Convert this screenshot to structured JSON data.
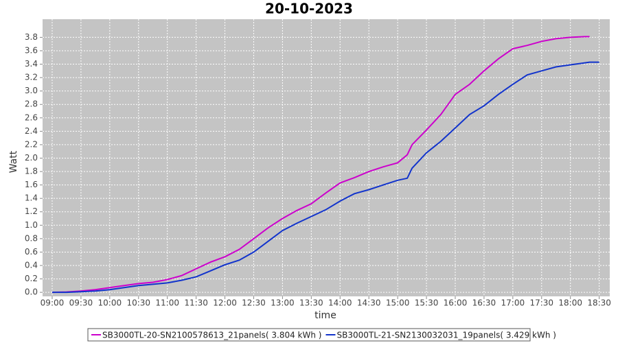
{
  "chart_data": {
    "type": "line",
    "title": "20-10-2023",
    "x_label": "time",
    "y_label": "Watt",
    "x": [
      "09:00",
      "09:15",
      "09:30",
      "09:45",
      "10:00",
      "10:15",
      "10:30",
      "10:45",
      "11:00",
      "11:15",
      "11:30",
      "11:45",
      "12:00",
      "12:15",
      "12:30",
      "12:45",
      "13:00",
      "13:15",
      "13:30",
      "13:45",
      "14:00",
      "14:15",
      "14:30",
      "14:45",
      "15:00",
      "15:10",
      "15:15",
      "15:30",
      "15:45",
      "16:00",
      "16:15",
      "16:30",
      "16:45",
      "17:00",
      "17:15",
      "17:30",
      "17:45",
      "18:00",
      "18:15",
      "18:20",
      "18:30"
    ],
    "series": [
      {
        "name": "SB3000TL-20-SN2100578613_21panels( 3.804 kWh )",
        "color": "#cc00cc",
        "values": [
          0.0,
          0.005,
          0.02,
          0.04,
          0.07,
          0.1,
          0.13,
          0.15,
          0.19,
          0.25,
          0.35,
          0.45,
          0.53,
          0.64,
          0.8,
          0.96,
          1.1,
          1.22,
          1.32,
          1.48,
          1.63,
          1.71,
          1.8,
          1.87,
          1.93,
          2.05,
          2.2,
          2.42,
          2.65,
          2.95,
          3.1,
          3.3,
          3.48,
          3.63,
          3.68,
          3.74,
          3.78,
          3.8,
          3.81,
          3.81,
          null
        ]
      },
      {
        "name": "SB3000TL-21-SN2130032031_19panels( 3.429 kWh )",
        "color": "#1133cc",
        "values": [
          0.0,
          0.0,
          0.01,
          0.02,
          0.04,
          0.07,
          0.1,
          0.12,
          0.14,
          0.18,
          0.23,
          0.32,
          0.41,
          0.48,
          0.6,
          0.76,
          0.92,
          1.03,
          1.13,
          1.23,
          1.36,
          1.47,
          1.53,
          1.6,
          1.67,
          1.7,
          1.85,
          2.08,
          2.25,
          2.45,
          2.65,
          2.78,
          2.95,
          3.1,
          3.24,
          3.3,
          3.36,
          3.39,
          3.42,
          3.43,
          3.43
        ]
      }
    ],
    "xlim": [
      "08:50",
      "18:41"
    ],
    "xticks": [
      "09:00",
      "09:30",
      "10:00",
      "10:30",
      "11:00",
      "11:30",
      "12:00",
      "12:30",
      "13:00",
      "13:30",
      "14:00",
      "14:30",
      "15:00",
      "15:30",
      "16:00",
      "16:30",
      "17:00",
      "17:30",
      "18:00",
      "18:30"
    ],
    "ylim": [
      -0.06,
      4.07
    ],
    "yticks": [
      {
        "value": 0,
        "label": "0.0"
      },
      0.2,
      0.4,
      0.6,
      0.8,
      {
        "value": 1,
        "label": "1.0"
      },
      1.2,
      1.4,
      1.6,
      1.8,
      {
        "value": 2,
        "label": "2.0"
      },
      2.2,
      2.4,
      2.6,
      2.8,
      {
        "value": 3,
        "label": "3.0"
      },
      3.2,
      3.4,
      3.6,
      3.8
    ],
    "grid": true,
    "legend": "bottom"
  }
}
